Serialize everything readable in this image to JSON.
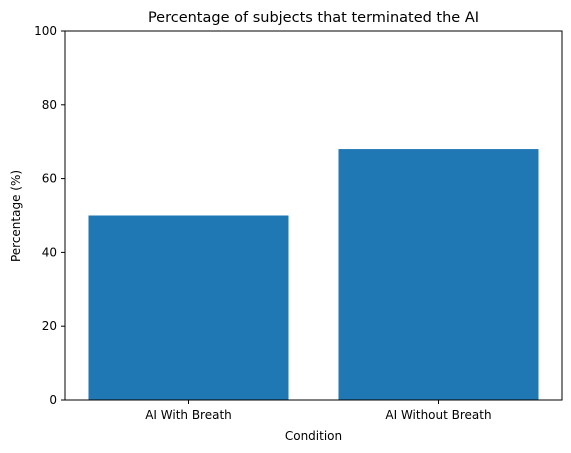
{
  "chart_data": {
    "type": "bar",
    "title": "Percentage of subjects that terminated the AI",
    "xlabel": "Condition",
    "ylabel": "Percentage (%)",
    "categories": [
      "AI With Breath",
      "AI Without Breath"
    ],
    "values": [
      50,
      68
    ],
    "ylim": [
      0,
      100
    ],
    "yticks": [
      "0",
      "20",
      "40",
      "60",
      "80",
      "100"
    ],
    "bar_color": "#1f77b4",
    "grid": false,
    "legend": "none"
  }
}
